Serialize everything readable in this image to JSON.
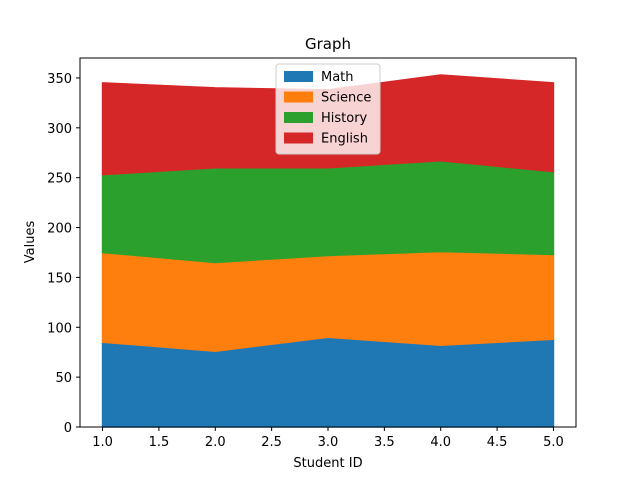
{
  "chart_data": {
    "type": "area",
    "stacked": true,
    "title": "Graph",
    "xlabel": "Student ID",
    "ylabel": "Values",
    "x": [
      1.0,
      2.0,
      3.0,
      4.0,
      5.0
    ],
    "xlim": [
      0.8,
      5.2
    ],
    "ylim": [
      0,
      370
    ],
    "xticks": [
      "1.0",
      "1.5",
      "2.0",
      "2.5",
      "3.0",
      "3.5",
      "4.0",
      "4.5",
      "5.0"
    ],
    "yticks": [
      "0",
      "50",
      "100",
      "150",
      "200",
      "250",
      "300",
      "350"
    ],
    "grid": false,
    "legend_position": "top-center",
    "series": [
      {
        "name": "Math",
        "color": "#1f77b4",
        "values": [
          85,
          76,
          90,
          82,
          88
        ]
      },
      {
        "name": "Science",
        "color": "#ff7f0e",
        "values": [
          90,
          89,
          82,
          94,
          85
        ]
      },
      {
        "name": "History",
        "color": "#2ca02c",
        "values": [
          78,
          95,
          88,
          91,
          83
        ]
      },
      {
        "name": "English",
        "color": "#d62728",
        "values": [
          92,
          80,
          78,
          86,
          89
        ]
      }
    ]
  }
}
